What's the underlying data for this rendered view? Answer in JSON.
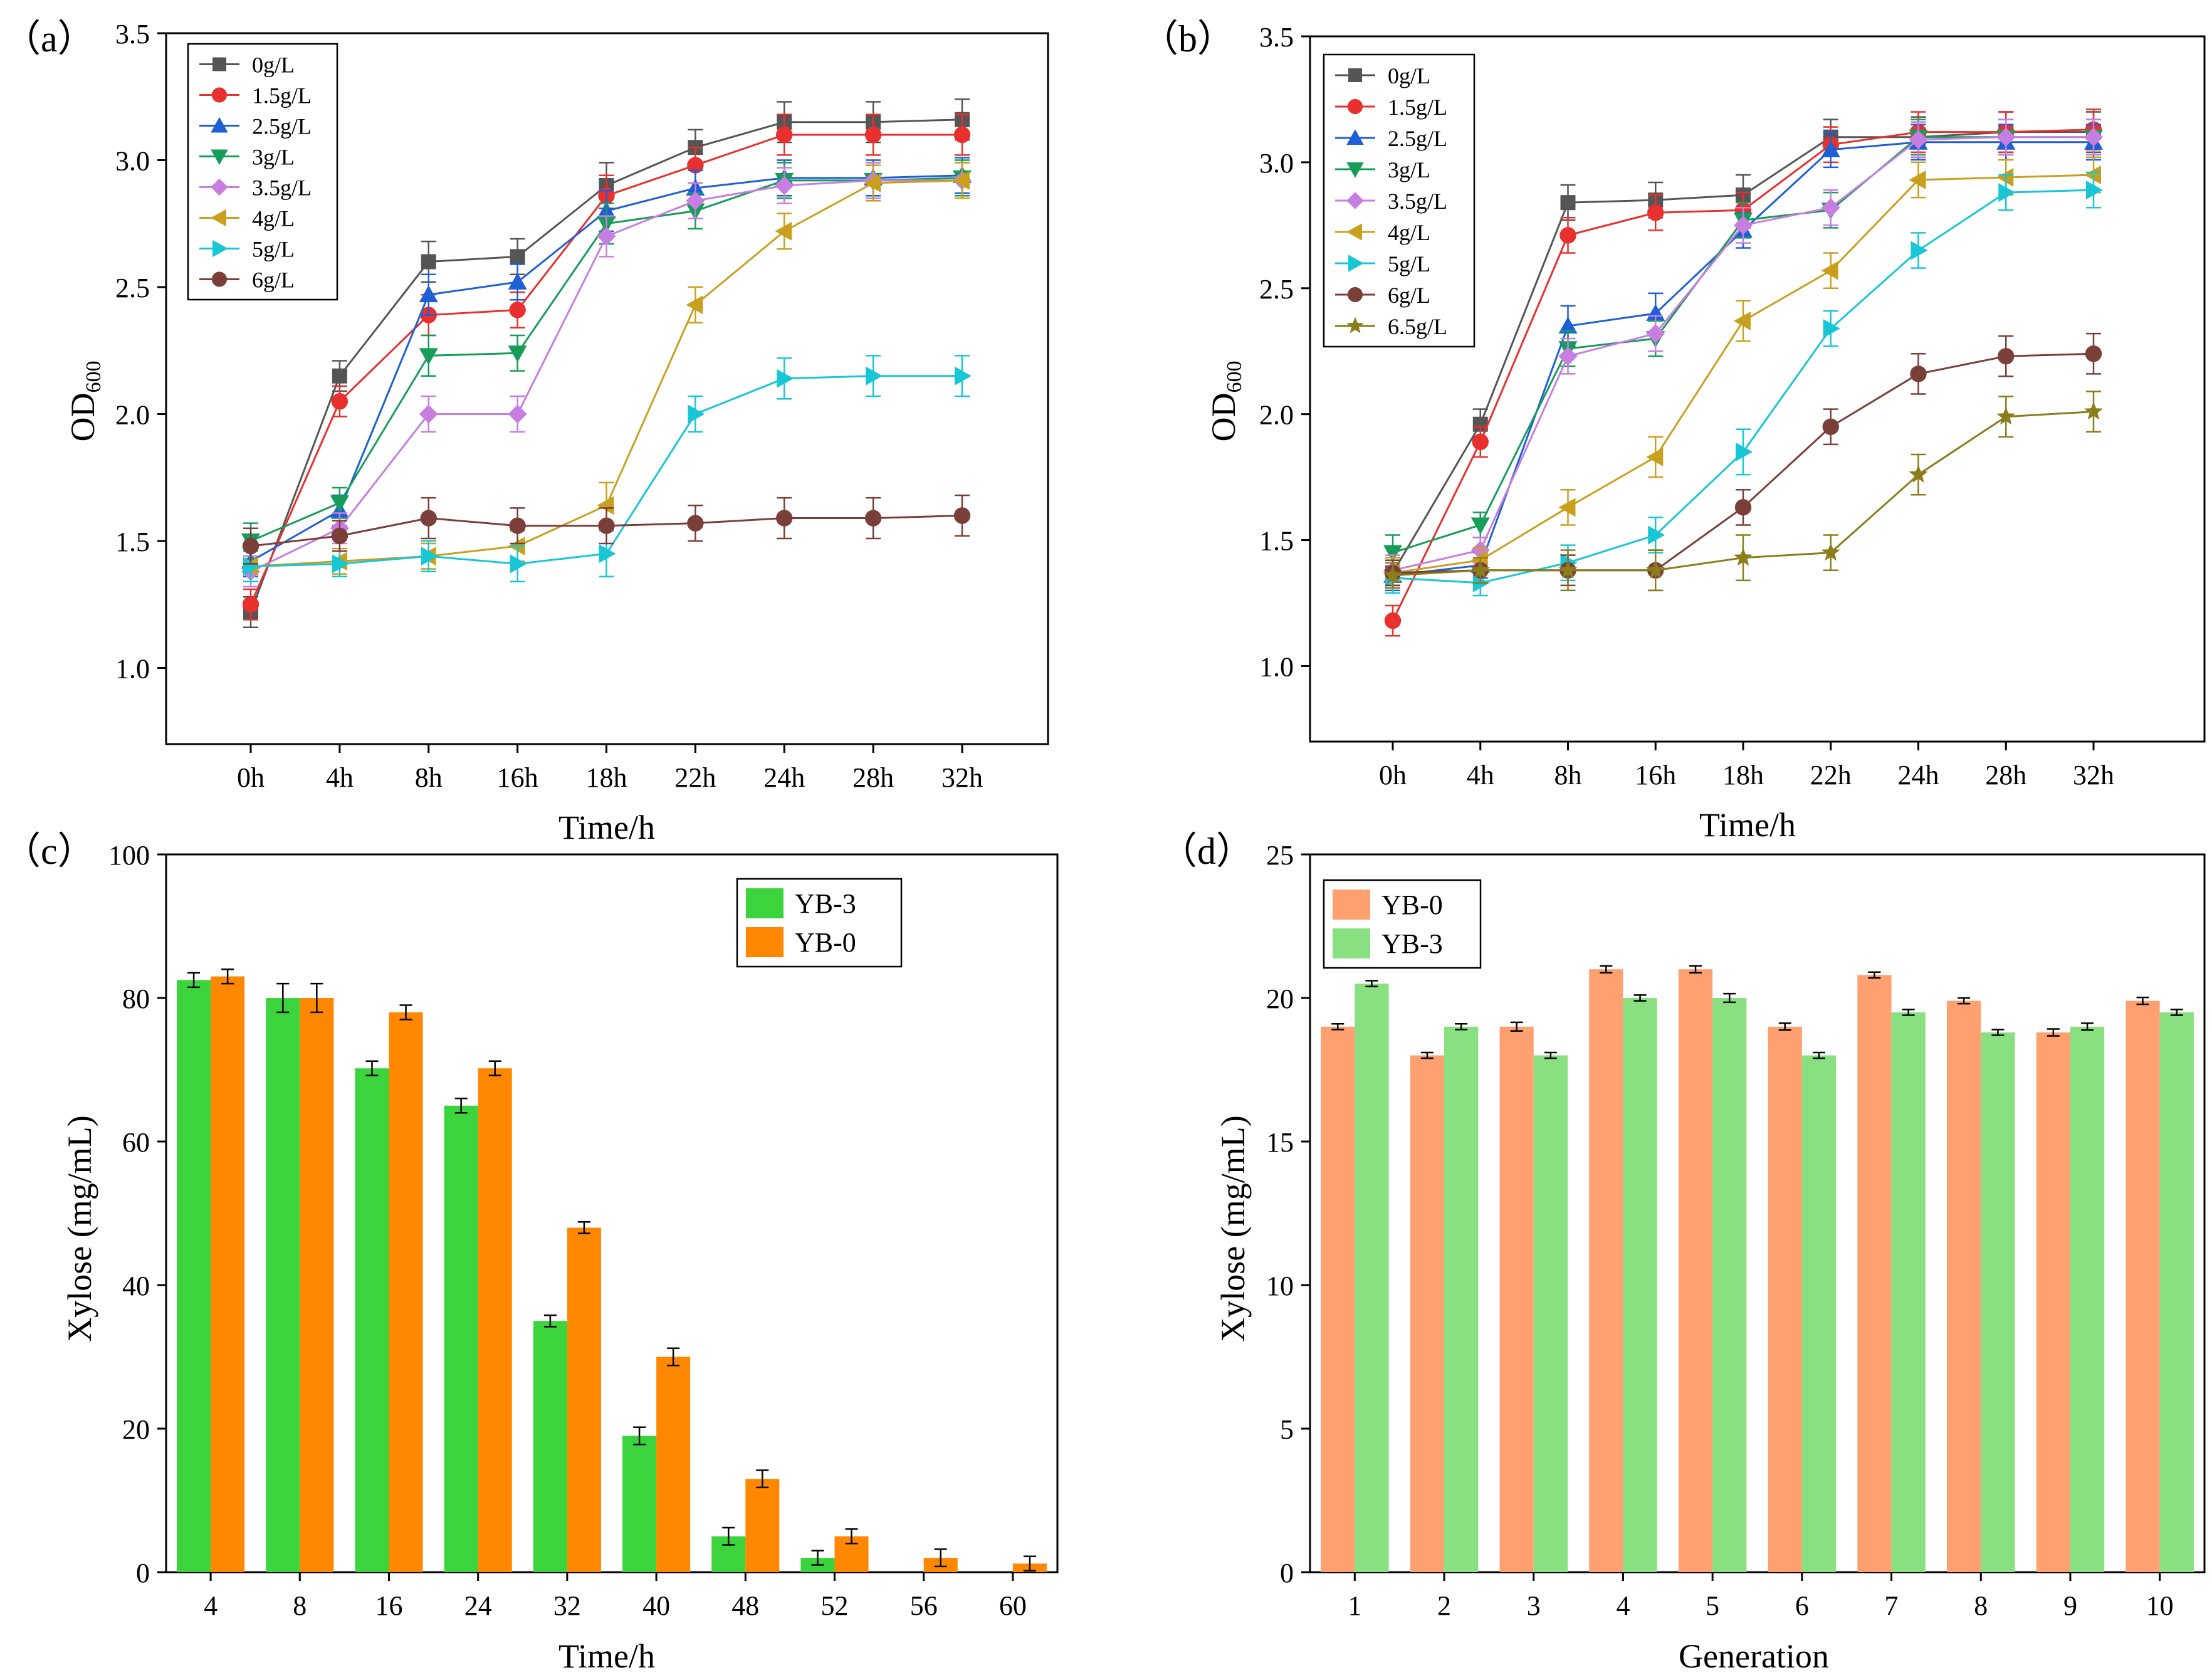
{
  "chart_data": [
    {
      "panel": "(a)",
      "type": "line",
      "title": "",
      "panel_label": "（a）",
      "xlabel": "Time/h",
      "ylabel": "OD",
      "ylabel_sub": "600",
      "categories": [
        "0h",
        "4h",
        "8h",
        "16h",
        "18h",
        "22h",
        "24h",
        "28h",
        "32h"
      ],
      "ylim": [
        0.7,
        3.5
      ],
      "yticks": [
        "1.0",
        "1.5",
        "2.0",
        "2.5",
        "3.0",
        "3.5"
      ],
      "ytick_values": [
        1.0,
        1.5,
        2.0,
        2.5,
        3.0,
        3.5
      ],
      "legend_position": "top-left",
      "series": [
        {
          "name": "0g/L",
          "marker": "square",
          "color": "#555555",
          "values": [
            1.22,
            2.15,
            2.6,
            2.62,
            2.9,
            3.05,
            3.15,
            3.15,
            3.16
          ],
          "errors": [
            0.06,
            0.06,
            0.08,
            0.07,
            0.09,
            0.07,
            0.08,
            0.08,
            0.08
          ]
        },
        {
          "name": "1.5g/L",
          "marker": "circle",
          "color": "#e8302e",
          "values": [
            1.25,
            2.05,
            2.39,
            2.41,
            2.86,
            2.98,
            3.1,
            3.1,
            3.1
          ],
          "errors": [
            0.06,
            0.06,
            0.08,
            0.07,
            0.08,
            0.07,
            0.08,
            0.08,
            0.08
          ]
        },
        {
          "name": "2.5g/L",
          "marker": "triangle-up",
          "color": "#1f5fd6",
          "values": [
            1.42,
            1.62,
            2.47,
            2.52,
            2.8,
            2.89,
            2.93,
            2.93,
            2.94
          ],
          "errors": [
            0.06,
            0.06,
            0.08,
            0.07,
            0.08,
            0.07,
            0.07,
            0.07,
            0.07
          ]
        },
        {
          "name": "3g/L",
          "marker": "triangle-down",
          "color": "#179c5a",
          "values": [
            1.5,
            1.65,
            2.23,
            2.24,
            2.75,
            2.8,
            2.92,
            2.92,
            2.93
          ],
          "errors": [
            0.07,
            0.06,
            0.08,
            0.07,
            0.08,
            0.07,
            0.07,
            0.07,
            0.07
          ]
        },
        {
          "name": "3.5g/L",
          "marker": "diamond",
          "color": "#c77ee0",
          "values": [
            1.38,
            1.55,
            2.0,
            2.0,
            2.7,
            2.84,
            2.9,
            2.92,
            2.92
          ],
          "errors": [
            0.06,
            0.06,
            0.07,
            0.07,
            0.08,
            0.07,
            0.07,
            0.07,
            0.07
          ]
        },
        {
          "name": "4g/L",
          "marker": "triangle-left",
          "color": "#c9a01e",
          "values": [
            1.4,
            1.42,
            1.44,
            1.48,
            1.64,
            2.43,
            2.72,
            2.91,
            2.92
          ],
          "errors": [
            0.06,
            0.05,
            0.05,
            0.06,
            0.09,
            0.07,
            0.07,
            0.07,
            0.07
          ]
        },
        {
          "name": "5g/L",
          "marker": "triangle-right",
          "color": "#19c6d6",
          "values": [
            1.4,
            1.41,
            1.44,
            1.41,
            1.45,
            2.0,
            2.14,
            2.15,
            2.15
          ],
          "errors": [
            0.06,
            0.05,
            0.06,
            0.07,
            0.09,
            0.07,
            0.08,
            0.08,
            0.08
          ]
        },
        {
          "name": "6g/L",
          "marker": "circle",
          "color": "#7b3f3a",
          "values": [
            1.48,
            1.52,
            1.59,
            1.56,
            1.56,
            1.57,
            1.59,
            1.59,
            1.6
          ],
          "errors": [
            0.07,
            0.06,
            0.08,
            0.07,
            0.07,
            0.07,
            0.08,
            0.08,
            0.08
          ]
        }
      ]
    },
    {
      "panel": "(b)",
      "type": "line",
      "title": "",
      "panel_label": "（b）",
      "xlabel": "Time/h",
      "ylabel": "OD",
      "ylabel_sub": "600",
      "categories": [
        "0h",
        "4h",
        "8h",
        "16h",
        "18h",
        "22h",
        "24h",
        "28h",
        "32h"
      ],
      "ylim": [
        0.7,
        3.5
      ],
      "yticks": [
        "1.0",
        "1.5",
        "2.0",
        "2.5",
        "3.0",
        "3.5"
      ],
      "ytick_values": [
        1.0,
        1.5,
        2.0,
        2.5,
        3.0,
        3.5
      ],
      "legend_position": "top-left",
      "series": [
        {
          "name": "0g/L",
          "marker": "square",
          "color": "#555555",
          "values": [
            1.37,
            1.96,
            2.84,
            2.85,
            2.87,
            3.1,
            3.1,
            3.12,
            3.12
          ],
          "errors": [
            0.05,
            0.06,
            0.07,
            0.07,
            0.08,
            0.07,
            0.08,
            0.08,
            0.08
          ]
        },
        {
          "name": "1.5g/L",
          "marker": "circle",
          "color": "#e8302e",
          "values": [
            1.18,
            1.89,
            2.71,
            2.8,
            2.81,
            3.07,
            3.12,
            3.12,
            3.13
          ],
          "errors": [
            0.06,
            0.06,
            0.07,
            0.07,
            0.07,
            0.07,
            0.08,
            0.08,
            0.08
          ]
        },
        {
          "name": "2.5g/L",
          "marker": "triangle-up",
          "color": "#1f5fd6",
          "values": [
            1.36,
            1.4,
            2.35,
            2.4,
            2.73,
            3.05,
            3.08,
            3.08,
            3.08
          ],
          "errors": [
            0.06,
            0.05,
            0.08,
            0.08,
            0.07,
            0.07,
            0.07,
            0.07,
            0.07
          ]
        },
        {
          "name": "3g/L",
          "marker": "triangle-down",
          "color": "#179c5a",
          "values": [
            1.45,
            1.56,
            2.26,
            2.3,
            2.77,
            2.81,
            3.1,
            3.1,
            3.1
          ],
          "errors": [
            0.07,
            0.05,
            0.07,
            0.07,
            0.07,
            0.07,
            0.07,
            0.07,
            0.07
          ]
        },
        {
          "name": "3.5g/L",
          "marker": "diamond",
          "color": "#c77ee0",
          "values": [
            1.38,
            1.46,
            2.23,
            2.32,
            2.75,
            2.82,
            3.09,
            3.1,
            3.1
          ],
          "errors": [
            0.06,
            0.05,
            0.07,
            0.07,
            0.07,
            0.07,
            0.07,
            0.07,
            0.07
          ]
        },
        {
          "name": "4g/L",
          "marker": "triangle-left",
          "color": "#c9a01e",
          "values": [
            1.37,
            1.42,
            1.63,
            1.83,
            2.37,
            2.57,
            2.93,
            2.94,
            2.95
          ],
          "errors": [
            0.06,
            0.05,
            0.07,
            0.08,
            0.08,
            0.07,
            0.07,
            0.07,
            0.07
          ]
        },
        {
          "name": "5g/L",
          "marker": "triangle-right",
          "color": "#19c6d6",
          "values": [
            1.35,
            1.33,
            1.41,
            1.52,
            1.85,
            2.34,
            2.65,
            2.88,
            2.89
          ],
          "errors": [
            0.06,
            0.05,
            0.07,
            0.07,
            0.09,
            0.07,
            0.07,
            0.07,
            0.07
          ]
        },
        {
          "name": "6g/L",
          "marker": "circle",
          "color": "#7b3f3a",
          "values": [
            1.37,
            1.38,
            1.38,
            1.38,
            1.63,
            1.95,
            2.16,
            2.23,
            2.24
          ],
          "errors": [
            0.05,
            0.05,
            0.06,
            0.08,
            0.07,
            0.07,
            0.08,
            0.08,
            0.08
          ]
        },
        {
          "name": "6.5g/L",
          "marker": "star",
          "color": "#8a7d1a",
          "values": [
            1.36,
            1.38,
            1.38,
            1.38,
            1.43,
            1.45,
            1.76,
            1.99,
            2.01
          ],
          "errors": [
            0.05,
            0.05,
            0.08,
            0.08,
            0.09,
            0.07,
            0.08,
            0.08,
            0.08
          ]
        }
      ]
    },
    {
      "panel": "(c)",
      "type": "bar",
      "title": "",
      "panel_label": "（c）",
      "xlabel": "Time/h",
      "ylabel": "Xylose (mg/mL)",
      "categories": [
        "4",
        "8",
        "16",
        "24",
        "32",
        "40",
        "48",
        "52",
        "56",
        "60"
      ],
      "ylim": [
        0,
        100
      ],
      "yticks": [
        "0",
        "20",
        "40",
        "60",
        "80",
        "100"
      ],
      "ytick_values": [
        0,
        20,
        40,
        60,
        80,
        100
      ],
      "legend_position": "top-right",
      "series": [
        {
          "name": "YB-3",
          "color": "#3cd43c",
          "values": [
            82.5,
            80,
            70.2,
            65,
            35,
            19,
            5,
            2,
            0,
            0
          ],
          "errors": [
            1.0,
            2.0,
            1.0,
            1.0,
            0.8,
            1.2,
            1.2,
            1.0,
            0,
            0
          ]
        },
        {
          "name": "YB-0",
          "color": "#ff8800",
          "values": [
            83,
            80,
            78,
            70.2,
            48,
            30,
            13,
            5,
            2,
            1.2
          ],
          "errors": [
            1.0,
            2.0,
            1.0,
            1.0,
            0.8,
            1.2,
            1.2,
            1.0,
            1.2,
            1.0
          ]
        }
      ]
    },
    {
      "panel": "(d)",
      "type": "bar",
      "title": "",
      "panel_label": "（d）",
      "xlabel": "Generation",
      "ylabel": "Xylose (mg/mL)",
      "categories": [
        "1",
        "2",
        "3",
        "4",
        "5",
        "6",
        "7",
        "8",
        "9",
        "10"
      ],
      "ylim": [
        0,
        25
      ],
      "yticks": [
        "0",
        "5",
        "10",
        "15",
        "20",
        "25"
      ],
      "ytick_values": [
        0,
        5,
        10,
        15,
        20,
        25
      ],
      "legend_position": "top-left",
      "series": [
        {
          "name": "YB-0",
          "color": "#ffa070",
          "values": [
            19.0,
            18.0,
            19.0,
            21.0,
            21.0,
            19.0,
            20.8,
            19.9,
            18.8,
            19.9
          ],
          "errors": [
            0.1,
            0.1,
            0.15,
            0.12,
            0.12,
            0.12,
            0.1,
            0.1,
            0.12,
            0.12
          ]
        },
        {
          "name": "YB-3",
          "color": "#88e080",
          "values": [
            20.5,
            19.0,
            18.0,
            20.0,
            20.0,
            18.0,
            19.5,
            18.8,
            19.0,
            19.5
          ],
          "errors": [
            0.1,
            0.1,
            0.1,
            0.1,
            0.15,
            0.1,
            0.1,
            0.1,
            0.12,
            0.1
          ]
        }
      ]
    }
  ]
}
